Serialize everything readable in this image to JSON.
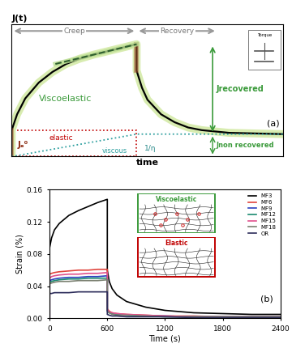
{
  "chart_data": [
    {
      "type": "line",
      "label": "(a)",
      "ylabel": "J(t)",
      "xlabel": "time",
      "xlim": [
        0,
        10
      ],
      "ylim": [
        0,
        10
      ],
      "tick_labels": false,
      "color": "#000000",
      "x": [
        0,
        0,
        0.2,
        0.5,
        1,
        1.5,
        2,
        2.5,
        3,
        3.5,
        4,
        4.6,
        4.6,
        4.8,
        5,
        5.5,
        6,
        6.5,
        7,
        8,
        9,
        10
      ],
      "values": [
        0,
        2.0,
        3.2,
        4.4,
        5.6,
        6.4,
        7.0,
        7.4,
        7.7,
        7.95,
        8.2,
        8.5,
        6.5,
        5.2,
        4.3,
        3.2,
        2.6,
        2.2,
        2.0,
        1.8,
        1.75,
        1.7
      ],
      "annotations": {
        "creep": "Creep",
        "recovery": "Recovery",
        "viscoelastic": "Viscoelastic",
        "elastic": "elastic",
        "viscous": "viscous",
        "slope": "1/η",
        "elastic_compliance": "Jₑ⁰",
        "recovered": "Jrecovered",
        "non_recovered": "Jnon recovered",
        "inset": "Torque"
      }
    },
    {
      "type": "line",
      "label": "(b)",
      "xlabel": "Time (s)",
      "ylabel": "Strain (%)",
      "xlim": [
        0,
        2400
      ],
      "ylim": [
        0,
        0.16
      ],
      "xticks": [
        0,
        600,
        1200,
        1800,
        2400
      ],
      "yticks": [
        {
          "value": 0,
          "label": "0.00"
        },
        0.04,
        0.08,
        0.12,
        0.16
      ],
      "legend": "upper right",
      "x": [
        0,
        0,
        20,
        50,
        100,
        200,
        300,
        400,
        500,
        600,
        600,
        620,
        650,
        700,
        800,
        1000,
        1200,
        1500,
        1800,
        2100,
        2400
      ],
      "series": [
        {
          "name": "MF3",
          "color": "#000000",
          "values": [
            0,
            0.088,
            0.1,
            0.11,
            0.118,
            0.128,
            0.134,
            0.139,
            0.144,
            0.148,
            0.06,
            0.046,
            0.037,
            0.029,
            0.021,
            0.014,
            0.01,
            0.007,
            0.006,
            0.005,
            0.005
          ]
        },
        {
          "name": "MF6",
          "color": "#e0443c",
          "values": [
            0,
            0.055,
            0.056,
            0.057,
            0.058,
            0.059,
            0.06,
            0.06,
            0.061,
            0.061,
            0.012,
            0.009,
            0.007,
            0.006,
            0.005,
            0.004,
            0.003,
            0.003,
            0.002,
            0.002,
            0.002
          ]
        },
        {
          "name": "MF9",
          "color": "#2a3fbf",
          "values": [
            0,
            0.047,
            0.048,
            0.049,
            0.05,
            0.051,
            0.051,
            0.052,
            0.052,
            0.053,
            0.01,
            0.008,
            0.006,
            0.005,
            0.004,
            0.003,
            0.003,
            0.002,
            0.002,
            0.002,
            0.002
          ]
        },
        {
          "name": "MF12",
          "color": "#1a8a70",
          "values": [
            0,
            0.045,
            0.046,
            0.047,
            0.048,
            0.049,
            0.049,
            0.05,
            0.05,
            0.05,
            0.009,
            0.007,
            0.006,
            0.005,
            0.004,
            0.003,
            0.002,
            0.002,
            0.002,
            0.002,
            0.002
          ]
        },
        {
          "name": "MF15",
          "color": "#e0508c",
          "values": [
            0,
            0.05,
            0.052,
            0.053,
            0.054,
            0.055,
            0.055,
            0.056,
            0.056,
            0.057,
            0.011,
            0.008,
            0.007,
            0.006,
            0.005,
            0.004,
            0.003,
            0.002,
            0.002,
            0.002,
            0.002
          ]
        },
        {
          "name": "MF18",
          "color": "#7a8070",
          "values": [
            0,
            0.043,
            0.044,
            0.045,
            0.046,
            0.046,
            0.047,
            0.047,
            0.047,
            0.048,
            0.009,
            0.007,
            0.005,
            0.004,
            0.004,
            0.003,
            0.002,
            0.002,
            0.002,
            0.002,
            0.002
          ]
        },
        {
          "name": "OR",
          "color": "#2c2c5a",
          "values": [
            0,
            0.031,
            0.031,
            0.032,
            0.032,
            0.032,
            0.033,
            0.033,
            0.033,
            0.033,
            0.005,
            0.004,
            0.003,
            0.003,
            0.002,
            0.002,
            0.002,
            0.001,
            0.001,
            0.001,
            0.001
          ]
        }
      ],
      "annotations": {
        "viscoelastic": "Viscoelastic",
        "elastic": "Elastic"
      }
    }
  ]
}
